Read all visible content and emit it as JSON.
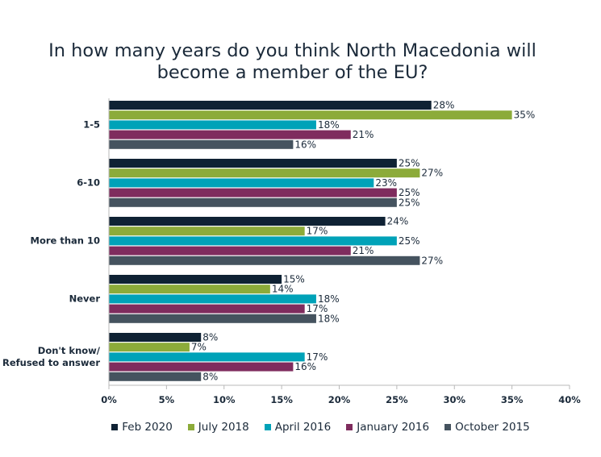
{
  "chart_data": {
    "type": "bar",
    "orientation": "horizontal",
    "title_lines": [
      "In how many years do you think North Macedonia will",
      "become a member of the EU?"
    ],
    "categories": [
      [
        "1-5"
      ],
      [
        "6-10"
      ],
      [
        "More than 10"
      ],
      [
        "Never"
      ],
      [
        "Don't know/",
        "Refused to answer"
      ]
    ],
    "series": [
      {
        "name": "Feb 2020",
        "color": "#0f2234",
        "values": [
          28,
          25,
          24,
          15,
          8
        ]
      },
      {
        "name": "July 2018",
        "color": "#8cab3a",
        "values": [
          35,
          27,
          17,
          14,
          7
        ]
      },
      {
        "name": "April 2016",
        "color": "#00a2b8",
        "values": [
          18,
          23,
          25,
          18,
          17
        ]
      },
      {
        "name": "January 2016",
        "color": "#7f2c5e",
        "values": [
          21,
          25,
          21,
          17,
          16
        ]
      },
      {
        "name": "October 2015",
        "color": "#45535f",
        "values": [
          16,
          25,
          27,
          18,
          8
        ]
      }
    ],
    "value_suffix": "%",
    "xlim": [
      0,
      40
    ],
    "xticks": [
      "0%",
      "5%",
      "10%",
      "15%",
      "20%",
      "25%",
      "30%",
      "35%",
      "40%"
    ],
    "grid": false,
    "legend_position": "bottom"
  }
}
